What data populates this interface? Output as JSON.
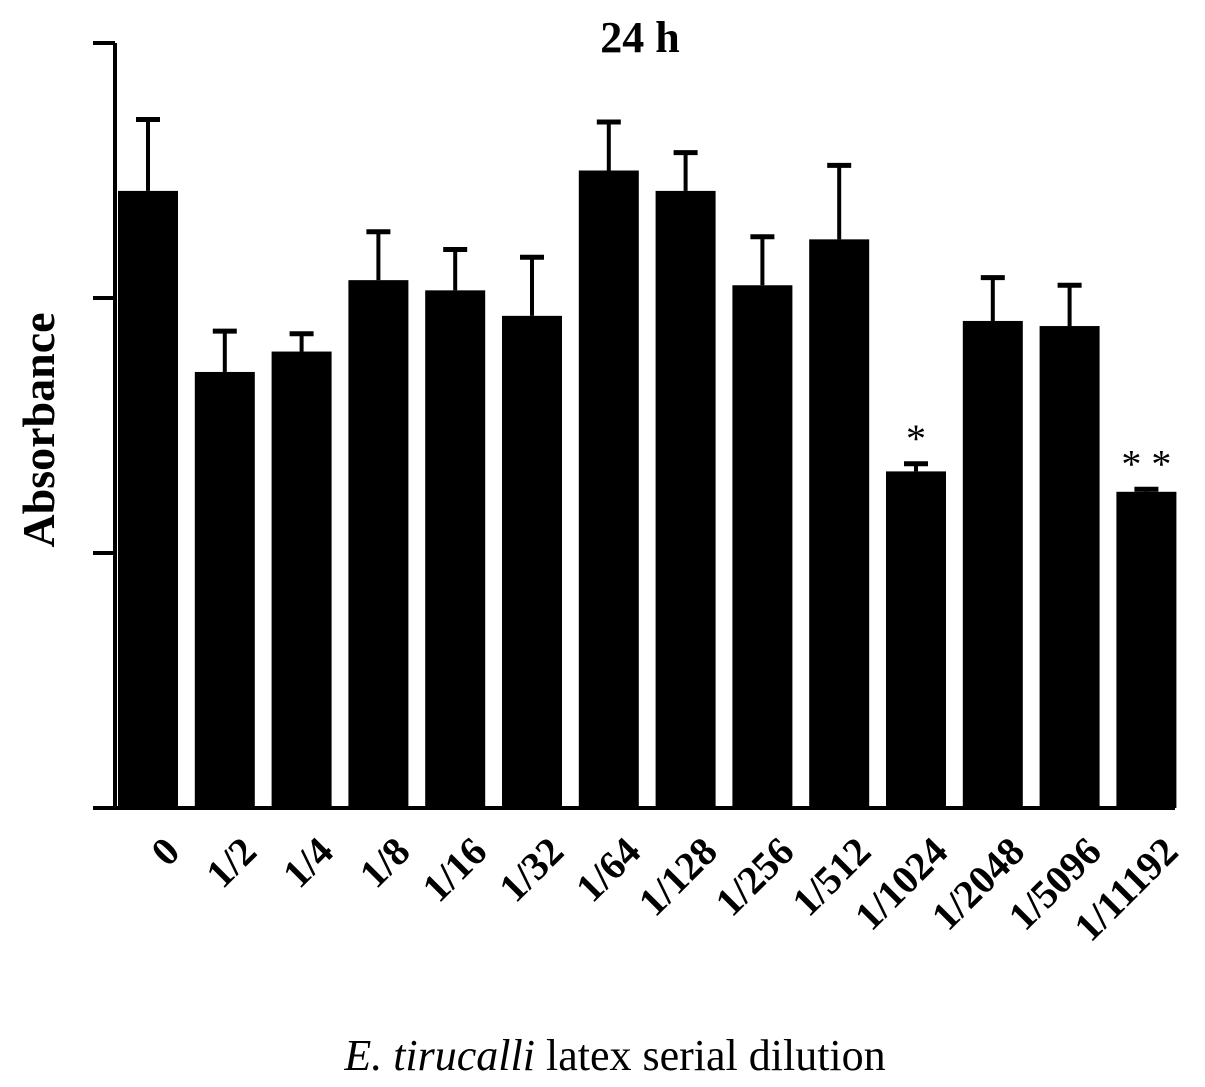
{
  "chart_data": {
    "type": "bar",
    "title": "24 h",
    "ylabel": "Absorbance",
    "xlabel_italic": "E. tirucalli",
    "xlabel_rest": " latex serial dilution",
    "ylim": [
      0,
      3
    ],
    "yticks": [
      0,
      1,
      2,
      3
    ],
    "ytick_labels_shown": false,
    "grid": false,
    "legend": "none",
    "bar_color": "#000000",
    "categories": [
      "0",
      "1/2",
      "1/4",
      "1/8",
      "1/16",
      "1/32",
      "1/64",
      "1/128",
      "1/256",
      "1/512",
      "1/1024",
      "1/2048",
      "1/5096",
      "1/11192"
    ],
    "values": [
      2.42,
      1.71,
      1.79,
      2.07,
      2.03,
      1.93,
      2.5,
      2.42,
      2.05,
      2.23,
      1.32,
      1.91,
      1.89,
      1.24
    ],
    "errors": [
      0.28,
      0.16,
      0.07,
      0.19,
      0.16,
      0.23,
      0.19,
      0.15,
      0.19,
      0.29,
      0.03,
      0.17,
      0.16,
      0.01
    ],
    "annotations": [
      {
        "category": "1/1024",
        "text": "*"
      },
      {
        "category": "1/11192",
        "text": "* *"
      }
    ]
  }
}
